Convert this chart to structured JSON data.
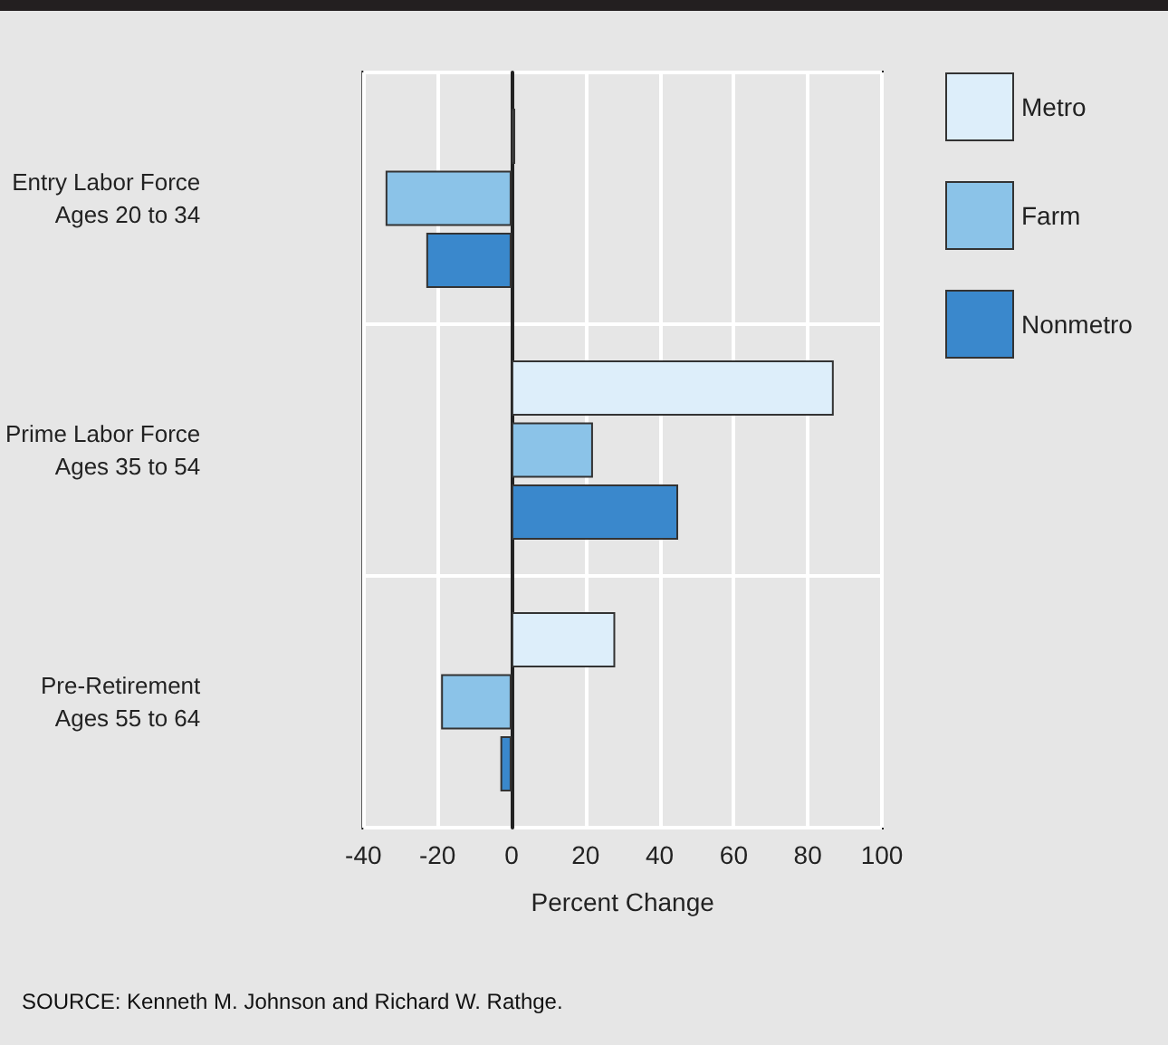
{
  "chart_data": {
    "type": "bar",
    "orientation": "horizontal",
    "xlabel": "Percent Change",
    "categories": [
      "Entry Labor Force\nAges 20 to 34",
      "Prime Labor Force\nAges 35 to 54",
      "Pre-Retirement\nAges 55 to 64"
    ],
    "series": [
      {
        "name": "Metro",
        "color": "#ddeefa",
        "values": [
          1,
          87,
          28
        ]
      },
      {
        "name": "Farm",
        "color": "#8bc3e8",
        "values": [
          -34,
          22,
          -19
        ]
      },
      {
        "name": "Nonmetro",
        "color": "#3a88cc",
        "values": [
          -23,
          45,
          -3
        ]
      }
    ],
    "xlim": [
      -40,
      100
    ],
    "xticks": [
      -40,
      -20,
      0,
      20,
      40,
      60,
      80,
      100
    ],
    "grid": true,
    "legend": "right",
    "annotations": [
      "SOURCE: Kenneth M. Johnson and Richard W. Rathge."
    ]
  }
}
